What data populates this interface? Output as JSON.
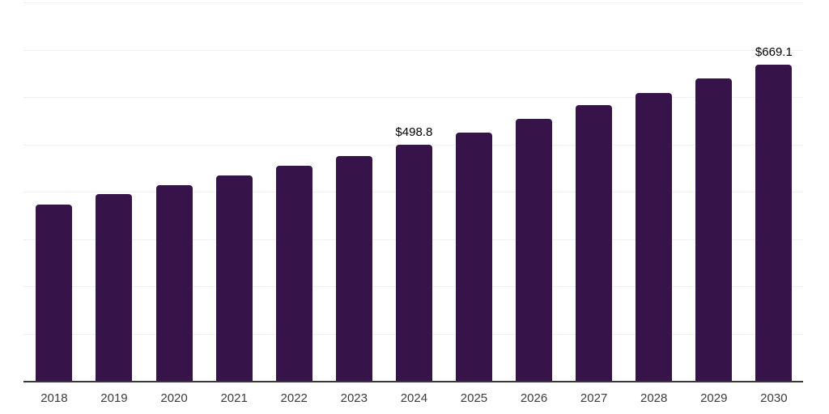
{
  "chart_data": {
    "type": "bar",
    "title": "",
    "xlabel": "",
    "ylabel": "",
    "categories": [
      "2018",
      "2019",
      "2020",
      "2021",
      "2022",
      "2023",
      "2024",
      "2025",
      "2026",
      "2027",
      "2028",
      "2029",
      "2030"
    ],
    "values": [
      373.5,
      394.4,
      414.2,
      434.7,
      455.0,
      475.7,
      498.8,
      525.6,
      553.2,
      582.8,
      609.0,
      639.0,
      669.1
    ],
    "value_labels": [
      "",
      "",
      "",
      "",
      "",
      "",
      "$498.8",
      "",
      "",
      "",
      "",
      "",
      "$669.1"
    ],
    "ylim": [
      0,
      800
    ],
    "gridline_step": 100,
    "grid": "horizontal only, no y-axis tick labels",
    "legend_position": "none"
  },
  "style": {
    "bar_color": "#361349",
    "gridline_color": "#f0f0f0",
    "axis_line_color": "#383838",
    "tick_label_color": "#3b3b3b",
    "value_label_color": "#000000",
    "background_color": "#ffffff"
  }
}
